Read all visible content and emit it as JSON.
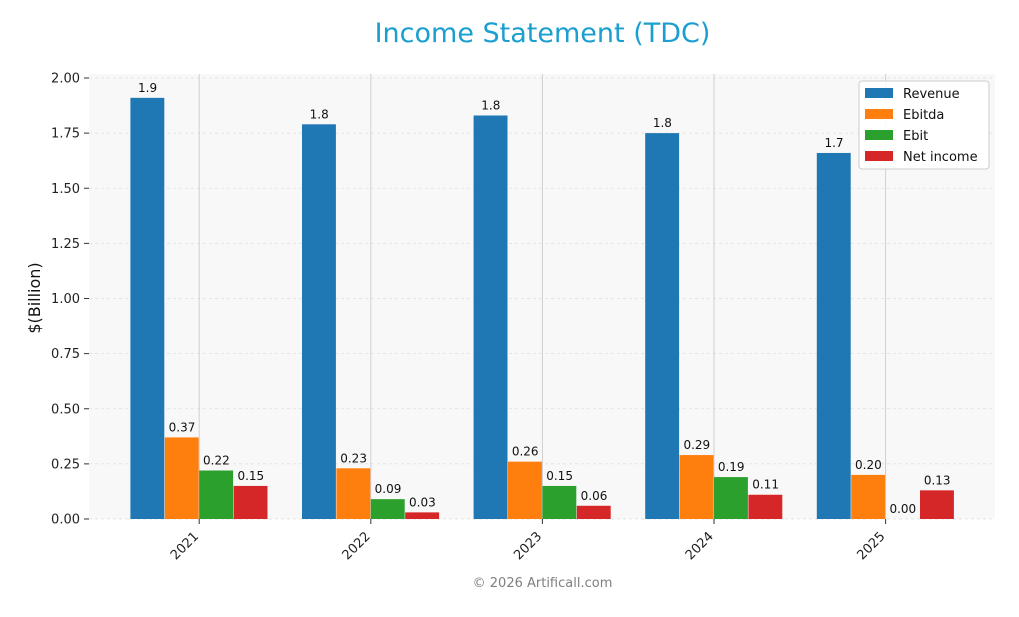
{
  "chart_data": {
    "type": "bar",
    "title": "Income Statement (TDC)",
    "ylabel": "$(Billion)",
    "xlabel": "",
    "categories": [
      "2021",
      "2022",
      "2023",
      "2024",
      "2025"
    ],
    "ylim": [
      0,
      2.0
    ],
    "yticks": [
      "0.00",
      "0.25",
      "0.50",
      "0.75",
      "1.00",
      "1.25",
      "1.50",
      "1.75",
      "2.00"
    ],
    "grid": true,
    "legend_position": "top-right",
    "series": [
      {
        "name": "Revenue",
        "color": "#1f77b4",
        "values": [
          1.91,
          1.79,
          1.83,
          1.75,
          1.66
        ],
        "labels": [
          "1.9",
          "1.8",
          "1.8",
          "1.8",
          "1.7"
        ]
      },
      {
        "name": "Ebitda",
        "color": "#ff7f0e",
        "values": [
          0.37,
          0.23,
          0.26,
          0.29,
          0.2
        ],
        "labels": [
          "0.37",
          "0.23",
          "0.26",
          "0.29",
          "0.20"
        ]
      },
      {
        "name": "Ebit",
        "color": "#2ca02c",
        "values": [
          0.22,
          0.09,
          0.15,
          0.19,
          0.0
        ],
        "labels": [
          "0.22",
          "0.09",
          "0.15",
          "0.19",
          "0.00"
        ]
      },
      {
        "name": "Net income",
        "color": "#d62728",
        "values": [
          0.15,
          0.03,
          0.06,
          0.11,
          0.13
        ],
        "labels": [
          "0.15",
          "0.03",
          "0.06",
          "0.11",
          "0.13"
        ]
      }
    ]
  },
  "footer": "© 2026 Artificall.com"
}
